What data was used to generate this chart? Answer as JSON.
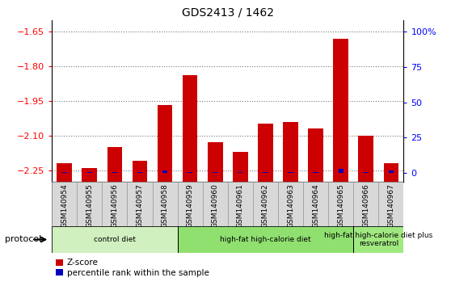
{
  "title": "GDS2413 / 1462",
  "samples": [
    "GSM140954",
    "GSM140955",
    "GSM140956",
    "GSM140957",
    "GSM140958",
    "GSM140959",
    "GSM140960",
    "GSM140961",
    "GSM140962",
    "GSM140963",
    "GSM140964",
    "GSM140965",
    "GSM140966",
    "GSM140967"
  ],
  "zscore": [
    -2.22,
    -2.24,
    -2.15,
    -2.21,
    -1.97,
    -1.84,
    -2.13,
    -2.17,
    -2.05,
    -2.04,
    -2.07,
    -1.68,
    -2.1,
    -2.22
  ],
  "pct_rank_vals": [
    1,
    1,
    1,
    1,
    2,
    1,
    1,
    1,
    1,
    1,
    1,
    3,
    1,
    2
  ],
  "ylim_left": [
    -2.3,
    -1.6
  ],
  "yticks_left": [
    -2.25,
    -2.1,
    -1.95,
    -1.8,
    -1.65
  ],
  "ylim_right": [
    -6,
    108
  ],
  "yticks_right": [
    0,
    25,
    50,
    75,
    100
  ],
  "bar_color": "#cc0000",
  "pct_color": "#0000bb",
  "groups": [
    {
      "label": "control diet",
      "start": 0,
      "end": 5,
      "color": "#d0f0c0"
    },
    {
      "label": "high-fat high-calorie diet",
      "start": 5,
      "end": 12,
      "color": "#90e070"
    },
    {
      "label": "high-fat high-calorie diet plus\nresveratrol",
      "start": 12,
      "end": 14,
      "color": "#a0e880"
    }
  ],
  "protocol_label": "protocol",
  "legend_zscore": "Z-score",
  "legend_pct": "percentile rank within the sample",
  "plot_bg": "#ffffff",
  "fig_bg": "#ffffff"
}
